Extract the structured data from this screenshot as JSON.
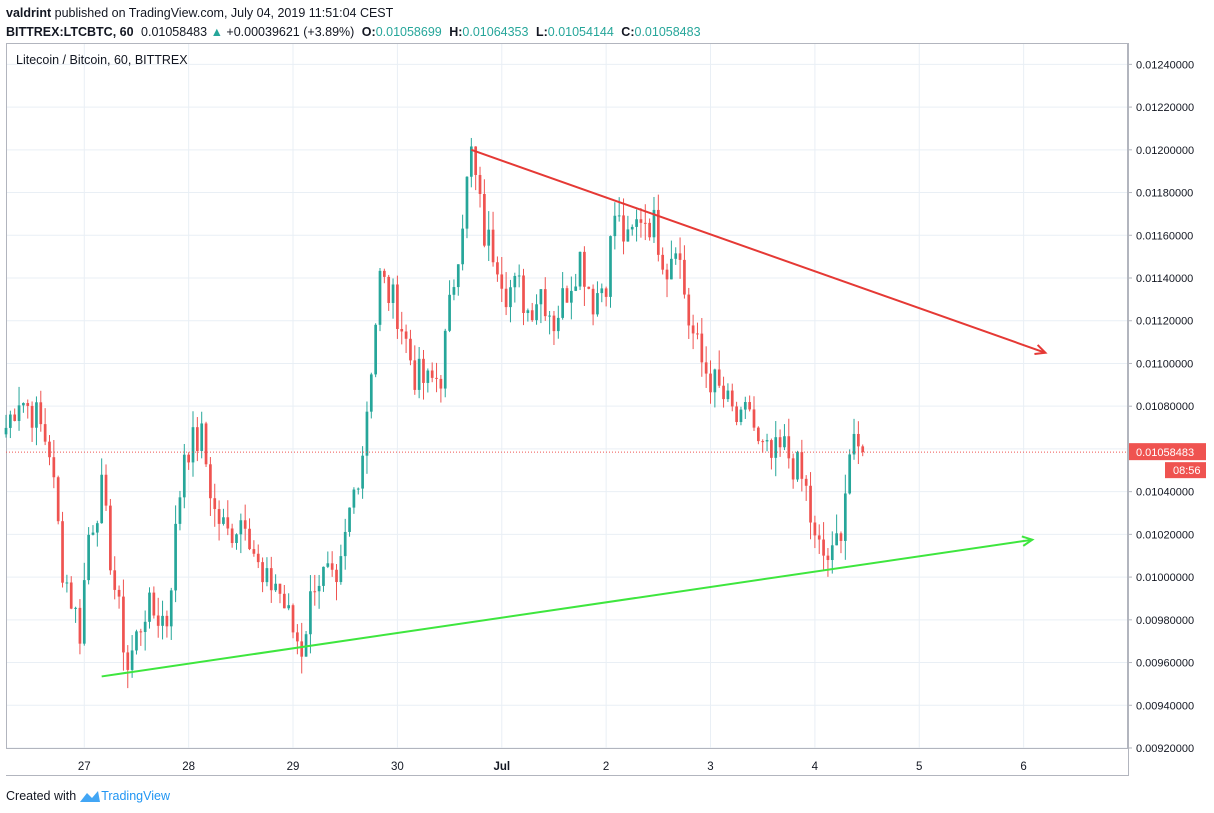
{
  "header": {
    "author": "valdrint",
    "published_text": "published on TradingView.com, July 04, 2019 11:51:04 CEST",
    "symbol": "BITTREX:LTCBTC, 60",
    "last_price": "0.01058483",
    "change_arrow": "▲",
    "change": "+0.00039621 (+3.89%)",
    "o_label": "O:",
    "o_value": "0.01058699",
    "h_label": "H:",
    "h_value": "0.01064353",
    "l_label": "L:",
    "l_value": "0.01054144",
    "c_label": "C:",
    "c_value": "0.01058483"
  },
  "footer": {
    "created_with": "Created with",
    "brand": "TradingView"
  },
  "colors": {
    "up": "#26a69a",
    "down": "#ef5350",
    "resistance": "#e53935",
    "support": "#3ee63e",
    "price_label": "#ef5350",
    "grid": "#e9eff5"
  },
  "chart_data": {
    "type": "candlestick",
    "title": "Litecoin / Bitcoin, 60, BITTREX",
    "interval_minutes": 60,
    "x_ticks": [
      "27",
      "28",
      "29",
      "30",
      "Jul",
      "2",
      "3",
      "4",
      "5",
      "6"
    ],
    "x_range": [
      "2019-06-26T06:00",
      "2019-07-07T00:00"
    ],
    "y_ticks": [
      "0.01240000",
      "0.01220000",
      "0.01200000",
      "0.01180000",
      "0.01160000",
      "0.01140000",
      "0.01120000",
      "0.01100000",
      "0.01080000",
      "0.01060000",
      "0.01040000",
      "0.01020000",
      "0.01000000",
      "0.00980000",
      "0.00960000",
      "0.00940000",
      "0.00920000"
    ],
    "ylim": [
      0.0092,
      0.0125
    ],
    "last_price_label": "0.01058483",
    "countdown_label": "08:56",
    "price_anchors": [
      [
        "2019-06-26T06:00",
        0.0107
      ],
      [
        "2019-06-26T09:00",
        0.01085
      ],
      [
        "2019-06-26T13:00",
        0.01075
      ],
      [
        "2019-06-26T16:00",
        0.0106
      ],
      [
        "2019-06-26T19:00",
        0.01005
      ],
      [
        "2019-06-26T23:00",
        0.00975
      ],
      [
        "2019-06-27T01:00",
        0.0102
      ],
      [
        "2019-06-27T04:00",
        0.0104
      ],
      [
        "2019-06-27T07:00",
        0.00995
      ],
      [
        "2019-06-27T10:00",
        0.00958
      ],
      [
        "2019-06-27T14:00",
        0.00985
      ],
      [
        "2019-06-27T19:00",
        0.0098
      ],
      [
        "2019-06-27T23:00",
        0.0106
      ],
      [
        "2019-06-28T03:00",
        0.01065
      ],
      [
        "2019-06-28T06:00",
        0.0103
      ],
      [
        "2019-06-28T09:00",
        0.0102
      ],
      [
        "2019-06-28T13:00",
        0.0103
      ],
      [
        "2019-06-28T17:00",
        0.00995
      ],
      [
        "2019-06-28T20:00",
        0.00998
      ],
      [
        "2019-06-29T00:00",
        0.00975
      ],
      [
        "2019-06-29T02:00",
        0.00967
      ],
      [
        "2019-06-29T05:00",
        0.01
      ],
      [
        "2019-06-29T08:00",
        0.01
      ],
      [
        "2019-06-29T10:00",
        0.0099
      ],
      [
        "2019-06-29T13:00",
        0.0103
      ],
      [
        "2019-06-29T16:00",
        0.0106
      ],
      [
        "2019-06-29T20:00",
        0.0114
      ],
      [
        "2019-06-30T00:00",
        0.01125
      ],
      [
        "2019-06-30T04:00",
        0.01095
      ],
      [
        "2019-06-30T07:00",
        0.0109
      ],
      [
        "2019-06-30T10:00",
        0.01095
      ],
      [
        "2019-06-30T14:00",
        0.01155
      ],
      [
        "2019-06-30T17:00",
        0.01198
      ],
      [
        "2019-06-30T20:00",
        0.0116
      ],
      [
        "2019-06-30T23:00",
        0.0115
      ],
      [
        "2019-07-01T01:00",
        0.01135
      ],
      [
        "2019-07-01T04:00",
        0.01135
      ],
      [
        "2019-07-01T06:00",
        0.01125
      ],
      [
        "2019-07-01T09:00",
        0.01135
      ],
      [
        "2019-07-01T12:00",
        0.0112
      ],
      [
        "2019-07-01T15:00",
        0.01135
      ],
      [
        "2019-07-01T18:00",
        0.0115
      ],
      [
        "2019-07-01T21:00",
        0.0113
      ],
      [
        "2019-07-02T00:00",
        0.0114
      ],
      [
        "2019-07-02T02:00",
        0.0117
      ],
      [
        "2019-07-02T05:00",
        0.01155
      ],
      [
        "2019-07-02T08:00",
        0.0117
      ],
      [
        "2019-07-02T11:00",
        0.01165
      ],
      [
        "2019-07-02T14:00",
        0.01145
      ],
      [
        "2019-07-02T16:00",
        0.0116
      ],
      [
        "2019-07-02T19:00",
        0.0112
      ],
      [
        "2019-07-02T22:00",
        0.011
      ],
      [
        "2019-07-03T01:00",
        0.0109
      ],
      [
        "2019-07-03T04:00",
        0.0108
      ],
      [
        "2019-07-03T07:00",
        0.0107
      ],
      [
        "2019-07-03T09:00",
        0.0108
      ],
      [
        "2019-07-03T11:00",
        0.0106
      ],
      [
        "2019-07-03T14:00",
        0.01055
      ],
      [
        "2019-07-03T17:00",
        0.0106
      ],
      [
        "2019-07-03T20:00",
        0.0105
      ],
      [
        "2019-07-03T22:00",
        0.0104
      ],
      [
        "2019-07-04T00:00",
        0.01015
      ],
      [
        "2019-07-04T02:00",
        0.0101
      ],
      [
        "2019-07-04T04:00",
        0.01008
      ],
      [
        "2019-07-04T06:00",
        0.01025
      ],
      [
        "2019-07-04T08:00",
        0.01058
      ],
      [
        "2019-07-04T11:00",
        0.010585
      ]
    ],
    "trendlines": [
      {
        "name": "resistance",
        "from": [
          "2019-06-30T17:00",
          0.012
        ],
        "to": [
          "2019-07-06T05:00",
          0.01105
        ]
      },
      {
        "name": "support",
        "from": [
          "2019-06-27T04:00",
          0.009535
        ],
        "to": [
          "2019-07-06T02:00",
          0.010175
        ]
      }
    ]
  }
}
